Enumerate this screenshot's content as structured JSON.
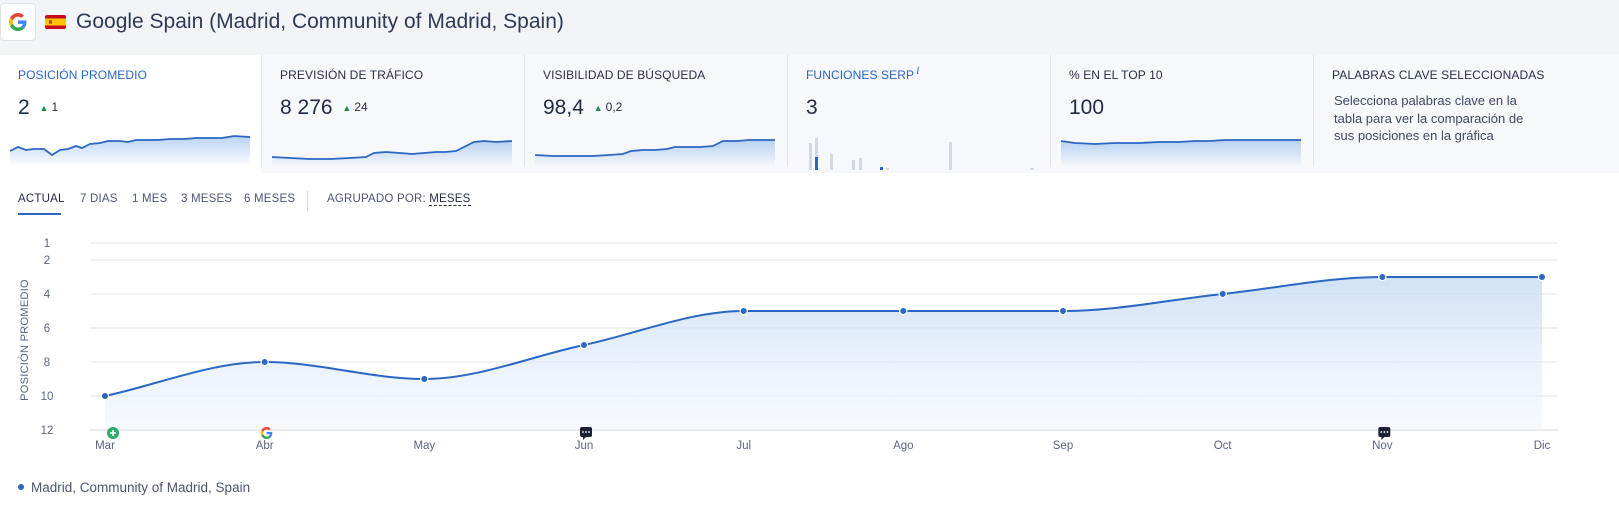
{
  "header": {
    "title": "Google Spain (Madrid, Community of Madrid, Spain)",
    "engine_icon": "google-g-icon",
    "flag_icon": "spain-flag-icon"
  },
  "cards": [
    {
      "label": "POSICIÓN PROMEDIO",
      "value": "2",
      "delta": "1",
      "delta_direction": "up",
      "active": true
    },
    {
      "label": "PREVISIÓN DE TRÁFICO",
      "value": "8 276",
      "delta": "24",
      "delta_direction": "up"
    },
    {
      "label": "VISIBILIDAD DE BÚSQUEDA",
      "value": "98,4",
      "delta": "0,2",
      "delta_direction": "up"
    },
    {
      "label": "FUNCIONES SERP",
      "info": "i",
      "value": "3"
    },
    {
      "label": "% EN EL TOP 10",
      "value": "100"
    },
    {
      "label": "PALABRAS CLAVE SELECCIONADAS",
      "description": "Selecciona palabras clave en la tabla para ver la comparación de sus posiciones en la gráfica"
    }
  ],
  "tabs": {
    "items": [
      "ACTUAL",
      "7 DIAS",
      "1 MES",
      "3 MESES",
      "6 MESES"
    ],
    "active": "ACTUAL",
    "group_label": "AGRUPADO POR:",
    "group_value": "MESES"
  },
  "chart_data": {
    "type": "area",
    "xlabel": "",
    "ylabel": "POSICIÓN PROMEDIO",
    "y_reversed": true,
    "ylim": [
      1,
      12
    ],
    "y_ticks": [
      1,
      2,
      4,
      6,
      8,
      10,
      12
    ],
    "grid": true,
    "categories": [
      "Mar",
      "Abr",
      "May",
      "Jun",
      "Jul",
      "Ago",
      "Sep",
      "Oct",
      "Nov",
      "Dic"
    ],
    "series": [
      {
        "name": "Madrid, Community of Madrid, Spain",
        "values": [
          10,
          8,
          9,
          7,
          5,
          5,
          5,
          4,
          3,
          3
        ],
        "color": "#2a66c4"
      }
    ],
    "annotations": [
      {
        "category": "Mar",
        "icon": "plus-circle-icon"
      },
      {
        "category": "Abr",
        "icon": "google-g-icon"
      },
      {
        "category": "Jun",
        "icon": "comment-icon"
      },
      {
        "category": "Nov",
        "icon": "comment-icon"
      }
    ],
    "legend_position": "bottom-left"
  },
  "colors": {
    "accent": "#2a66c4",
    "positive": "#1e8a4c",
    "grid": "#dfe3ea"
  }
}
